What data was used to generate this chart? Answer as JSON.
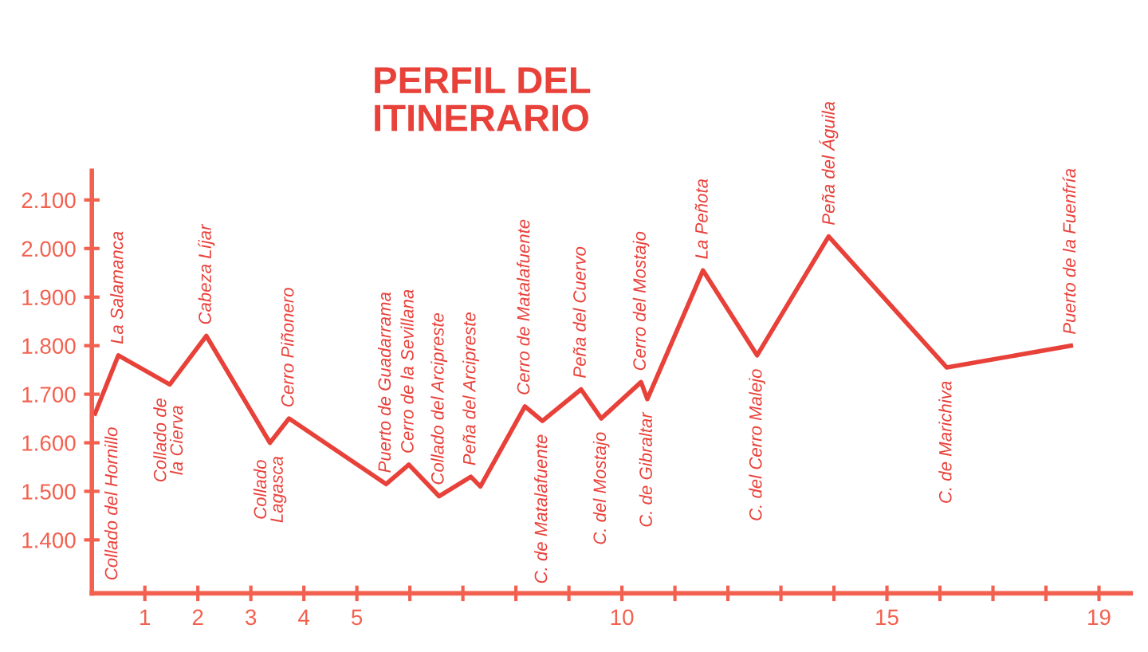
{
  "chart_data": {
    "type": "line",
    "title": "PERFIL DEL\nITINERARIO",
    "x": [
      0.06,
      0.5,
      1.47,
      2.16,
      3.36,
      3.72,
      5.55,
      5.98,
      6.55,
      7.15,
      7.33,
      8.17,
      8.5,
      9.23,
      9.61,
      10.36,
      10.48,
      11.53,
      12.55,
      13.9,
      16.13,
      18.47
    ],
    "series": [
      {
        "color": "#e8413a",
        "values": [
          1660,
          1780,
          1720,
          1820,
          1600,
          1650,
          1515,
          1555,
          1490,
          1530,
          1510,
          1675,
          1645,
          1710,
          1650,
          1725,
          1690,
          1955,
          1780,
          2025,
          1755,
          1800
        ]
      }
    ],
    "xlim": [
      0,
      19.6
    ],
    "xticks": [
      {
        "value": 1,
        "label": "1"
      },
      {
        "value": 2,
        "label": "2"
      },
      {
        "value": 3,
        "label": "3"
      },
      {
        "value": 4,
        "label": "4"
      },
      {
        "value": 5,
        "label": "5"
      },
      {
        "value": 6,
        "label": null
      },
      {
        "value": 7,
        "label": null
      },
      {
        "value": 8,
        "label": null
      },
      {
        "value": 9,
        "label": null
      },
      {
        "value": 10,
        "label": "10"
      },
      {
        "value": 11,
        "label": null
      },
      {
        "value": 12,
        "label": null
      },
      {
        "value": 13,
        "label": null
      },
      {
        "value": 14,
        "label": null
      },
      {
        "value": 15,
        "label": "15"
      },
      {
        "value": 16,
        "label": null
      },
      {
        "value": 17,
        "label": null
      },
      {
        "value": 18,
        "label": null
      },
      {
        "value": 19,
        "label": "19"
      }
    ],
    "ylim": [
      1290,
      2160
    ],
    "yticks": [
      {
        "value": 1400,
        "label": "1.400"
      },
      {
        "value": 1500,
        "label": "1.500"
      },
      {
        "value": 1600,
        "label": "1.600"
      },
      {
        "value": 1700,
        "label": "1.700"
      },
      {
        "value": 1800,
        "label": "1.800"
      },
      {
        "value": 1900,
        "label": "1.900"
      },
      {
        "value": 2000,
        "label": "2.000"
      },
      {
        "value": 2100,
        "label": "2.100"
      }
    ],
    "grid": false,
    "legend": false,
    "marker": "none",
    "line_style": "solid",
    "annotations": [
      {
        "text": "Collado del Hornillo",
        "x": 0.06,
        "y": 1660
      },
      {
        "text": "La Salamanca",
        "x": 0.5,
        "y": 1780
      },
      {
        "text": "Collado de\nla Cierva",
        "x": 1.47,
        "y": 1720
      },
      {
        "text": "Cabeza Líjar",
        "x": 2.16,
        "y": 1820
      },
      {
        "text": "Collado\nLagasca",
        "x": 3.36,
        "y": 1600
      },
      {
        "text": "Cerro Piñonero",
        "x": 3.72,
        "y": 1650
      },
      {
        "text": "Puerto de Guadarrama",
        "x": 5.55,
        "y": 1515
      },
      {
        "text": "Cerro de la Sevillana",
        "x": 5.98,
        "y": 1555
      },
      {
        "text": "Collado del Arcipreste",
        "x": 6.55,
        "y": 1490
      },
      {
        "text": "Peña del Arcipreste",
        "x": 7.15,
        "y": 1530
      },
      {
        "text": "Cerro de Matalafuente",
        "x": 8.17,
        "y": 1675
      },
      {
        "text": "C. de Matalafuente",
        "x": 8.5,
        "y": 1645
      },
      {
        "text": "Peña del Cuervo",
        "x": 9.23,
        "y": 1710
      },
      {
        "text": "C. del Mostajo",
        "x": 9.61,
        "y": 1650
      },
      {
        "text": "Cerro del Mostajo",
        "x": 10.36,
        "y": 1725
      },
      {
        "text": "C. de Gibraltar",
        "x": 10.48,
        "y": 1690
      },
      {
        "text": "La Peñota",
        "x": 11.53,
        "y": 1955
      },
      {
        "text": "C. del Cerro Malejo",
        "x": 12.55,
        "y": 1780
      },
      {
        "text": "Peña del Águila",
        "x": 13.9,
        "y": 2025
      },
      {
        "text": "C. de Marichiva",
        "x": 16.13,
        "y": 1755
      },
      {
        "text": "Puerto de la Fuenfría",
        "x": 18.47,
        "y": 1800
      }
    ]
  }
}
